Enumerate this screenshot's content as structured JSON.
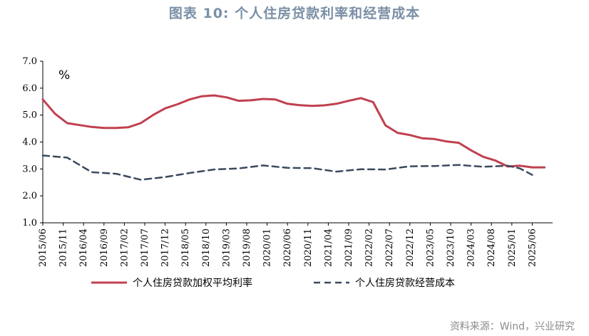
{
  "page": {
    "title": "图表 10: 个人住房贷款利率和经营成本",
    "source": "资料来源：Wind，兴业研究"
  },
  "chart_data": {
    "type": "line",
    "title": "图表 10: 个人住房贷款利率和经营成本",
    "unit_label": "%",
    "ylim": [
      1.0,
      7.0
    ],
    "yticks": [
      1.0,
      2.0,
      3.0,
      4.0,
      5.0,
      6.0,
      7.0
    ],
    "ytick_labels": [
      "1.0",
      "2.0",
      "3.0",
      "4.0",
      "5.0",
      "6.0",
      "7.0"
    ],
    "x_categories": [
      "2015/06",
      "2015/11",
      "2016/04",
      "2016/09",
      "2017/02",
      "2017/07",
      "2017/12",
      "2018/05",
      "2018/10",
      "2019/03",
      "2019/08",
      "2020/01",
      "2020/06",
      "2020/11",
      "2021/04",
      "2021/09",
      "2022/02",
      "2022/07",
      "2022/12",
      "2023/05",
      "2023/10",
      "2024/03",
      "2024/08",
      "2025/01",
      "2025/06"
    ],
    "grid": false,
    "legend_position": "bottom",
    "series": [
      {
        "name": "个人住房贷款加权平均利率",
        "color": "#c0404f",
        "style": "solid",
        "points": [
          [
            "2015/06",
            5.58
          ],
          [
            "2015/09",
            5.05
          ],
          [
            "2015/12",
            4.7
          ],
          [
            "2016/03",
            4.63
          ],
          [
            "2016/06",
            4.56
          ],
          [
            "2016/09",
            4.52
          ],
          [
            "2016/12",
            4.52
          ],
          [
            "2017/03",
            4.55
          ],
          [
            "2017/06",
            4.7
          ],
          [
            "2017/09",
            5.0
          ],
          [
            "2017/12",
            5.25
          ],
          [
            "2018/03",
            5.4
          ],
          [
            "2018/06",
            5.58
          ],
          [
            "2018/09",
            5.7
          ],
          [
            "2018/12",
            5.73
          ],
          [
            "2019/03",
            5.66
          ],
          [
            "2019/06",
            5.53
          ],
          [
            "2019/09",
            5.55
          ],
          [
            "2019/12",
            5.6
          ],
          [
            "2020/03",
            5.58
          ],
          [
            "2020/06",
            5.42
          ],
          [
            "2020/09",
            5.37
          ],
          [
            "2020/12",
            5.34
          ],
          [
            "2021/03",
            5.36
          ],
          [
            "2021/06",
            5.42
          ],
          [
            "2021/09",
            5.53
          ],
          [
            "2021/12",
            5.63
          ],
          [
            "2022/03",
            5.48
          ],
          [
            "2022/06",
            4.62
          ],
          [
            "2022/09",
            4.34
          ],
          [
            "2022/12",
            4.26
          ],
          [
            "2023/03",
            4.14
          ],
          [
            "2023/06",
            4.11
          ],
          [
            "2023/09",
            4.02
          ],
          [
            "2023/12",
            3.97
          ],
          [
            "2024/03",
            3.69
          ],
          [
            "2024/06",
            3.45
          ],
          [
            "2024/09",
            3.31
          ],
          [
            "2024/12",
            3.09
          ],
          [
            "2025/03",
            3.12
          ],
          [
            "2025/06",
            3.06
          ],
          [
            "2025/09",
            3.06
          ]
        ]
      },
      {
        "name": "个人住房贷款经营成本",
        "color": "#3a4a5e",
        "style": "dashed",
        "points": [
          [
            "2015/06",
            3.5
          ],
          [
            "2015/12",
            3.42
          ],
          [
            "2016/06",
            2.88
          ],
          [
            "2016/12",
            2.82
          ],
          [
            "2017/06",
            2.6
          ],
          [
            "2017/12",
            2.7
          ],
          [
            "2018/06",
            2.85
          ],
          [
            "2018/12",
            2.98
          ],
          [
            "2019/06",
            3.02
          ],
          [
            "2019/12",
            3.13
          ],
          [
            "2020/06",
            3.04
          ],
          [
            "2020/12",
            3.03
          ],
          [
            "2021/06",
            2.9
          ],
          [
            "2021/12",
            2.99
          ],
          [
            "2022/06",
            2.98
          ],
          [
            "2022/12",
            3.1
          ],
          [
            "2023/06",
            3.11
          ],
          [
            "2023/12",
            3.15
          ],
          [
            "2024/06",
            3.08
          ],
          [
            "2024/12",
            3.12
          ],
          [
            "2025/03",
            3.02
          ],
          [
            "2025/06",
            2.78
          ]
        ]
      }
    ]
  }
}
